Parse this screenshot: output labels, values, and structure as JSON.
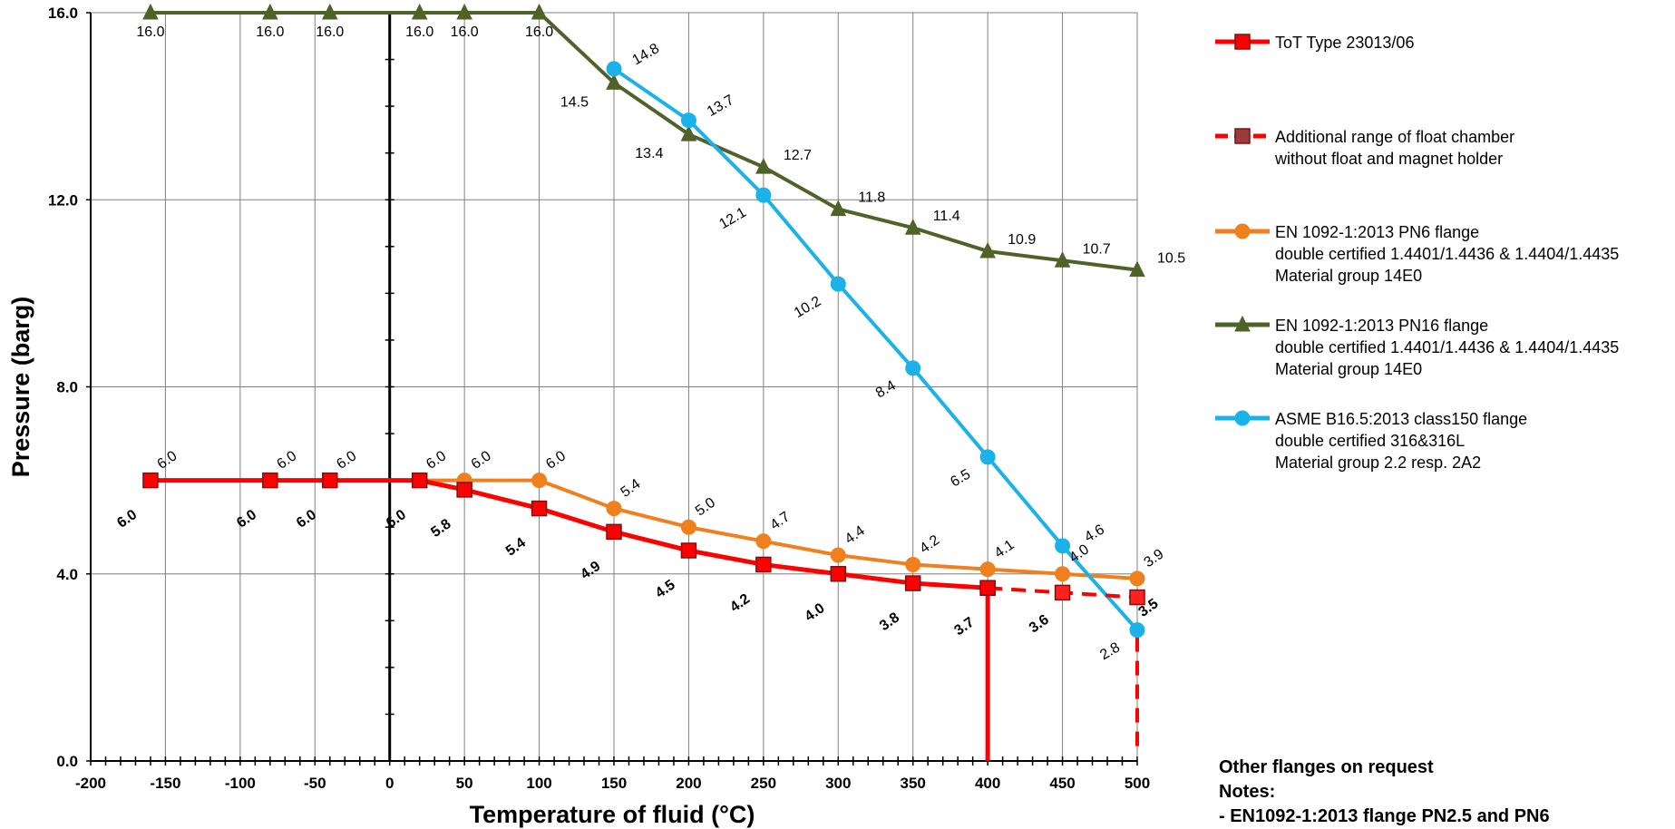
{
  "chart_data": {
    "type": "line",
    "xlabel": "Temperature of fluid (°C)",
    "ylabel": "Pressure (barg)",
    "xlim": [
      -200,
      500
    ],
    "ylim": [
      0,
      16
    ],
    "x_ticks": [
      -200,
      -150,
      -100,
      -50,
      0,
      50,
      100,
      150,
      200,
      250,
      300,
      350,
      400,
      450,
      500
    ],
    "y_ticks": [
      0,
      4,
      8,
      12,
      16
    ],
    "y_tick_labels": [
      "0.0",
      "4.0",
      "8.0",
      "12.0",
      "16.0"
    ],
    "grid": true,
    "legend_position": "right",
    "series": [
      {
        "name": "ToT Type 23013/06",
        "color": "#ff0000",
        "marker": "square",
        "x": [
          -160,
          -80,
          -40,
          20,
          50,
          100,
          150,
          200,
          250,
          300,
          350,
          400
        ],
        "y": [
          6.0,
          6.0,
          6.0,
          6.0,
          5.8,
          5.4,
          4.9,
          4.5,
          4.2,
          4.0,
          3.8,
          3.7
        ],
        "labels": [
          "6.0",
          "6.0",
          "6.0",
          "6.0",
          "5.8",
          "5.4",
          "4.9",
          "4.5",
          "4.2",
          "4.0",
          "3.8",
          "3.7"
        ]
      },
      {
        "name": "Additional range of float chamber without float and magnet holder",
        "name_lines": [
          "Additional range of float chamber",
          "without float and magnet holder"
        ],
        "color": "#ff0000",
        "dashed": true,
        "marker": "square",
        "x": [
          400,
          450,
          500
        ],
        "y": [
          3.7,
          3.6,
          3.5
        ],
        "labels": [
          "",
          "3.6",
          "3.5"
        ]
      },
      {
        "name": "EN 1092-1:2013 PN6 flange double certified 1.4401/1.4436 & 1.4404/1.4435 Material group 14E0",
        "name_lines": [
          "EN 1092-1:2013 PN6 flange",
          "double certified 1.4401/1.4436 & 1.4404/1.4435",
          "Material group 14E0"
        ],
        "color": "#f07f1e",
        "marker": "circle",
        "x": [
          -160,
          -80,
          -40,
          20,
          50,
          100,
          150,
          200,
          250,
          300,
          350,
          400,
          450,
          500
        ],
        "y": [
          6.0,
          6.0,
          6.0,
          6.0,
          6.0,
          6.0,
          5.4,
          5.0,
          4.7,
          4.4,
          4.2,
          4.1,
          4.0,
          3.9
        ],
        "labels": [
          "6.0",
          "6.0",
          "6.0",
          "6.0",
          "6.0",
          "6.0",
          "5.4",
          "5.0",
          "4.7",
          "4.4",
          "4.2",
          "4.1",
          "4.0",
          "3.9"
        ]
      },
      {
        "name": "EN 1092-1:2013 PN16 flange double certified 1.4401/1.4436 & 1.4404/1.4435 Material group 14E0",
        "name_lines": [
          "EN 1092-1:2013 PN16 flange",
          "double certified 1.4401/1.4436 & 1.4404/1.4435",
          "Material group 14E0"
        ],
        "color": "#4f6228",
        "marker": "triangle",
        "x": [
          -160,
          -80,
          -40,
          20,
          50,
          100,
          150,
          200,
          250,
          300,
          350,
          400,
          450,
          500
        ],
        "y": [
          16.0,
          16.0,
          16.0,
          16.0,
          16.0,
          16.0,
          14.5,
          13.4,
          12.7,
          11.8,
          11.4,
          10.9,
          10.7,
          10.5
        ],
        "labels": [
          "16.0",
          "16.0",
          "16.0",
          "16.0",
          "16.0",
          "16.0",
          "14.5",
          "13.4",
          "12.7",
          "11.8",
          "11.4",
          "10.9",
          "10.7",
          "10.5"
        ]
      },
      {
        "name": "ASME B16.5:2013 class150 flange double certified 316&316L Material group 2.2 resp. 2A2",
        "name_lines": [
          "ASME B16.5:2013 class150 flange",
          "double certified 316&316L",
          "Material group 2.2 resp. 2A2"
        ],
        "color": "#1ab2e8",
        "marker": "circle",
        "x": [
          150,
          200,
          250,
          300,
          350,
          400,
          450,
          500
        ],
        "y": [
          14.8,
          13.7,
          12.1,
          10.2,
          8.4,
          6.5,
          4.6,
          2.8
        ],
        "labels": [
          "14.8",
          "13.7",
          "12.1",
          "10.2",
          "8.4",
          "6.5",
          "4.6",
          "2.8"
        ]
      }
    ]
  },
  "notes": {
    "heading": "Other flanges on request",
    "notes_label": "Notes:",
    "items": [
      "- EN1092-1:2013 flange PN2.5 and PN6"
    ]
  }
}
